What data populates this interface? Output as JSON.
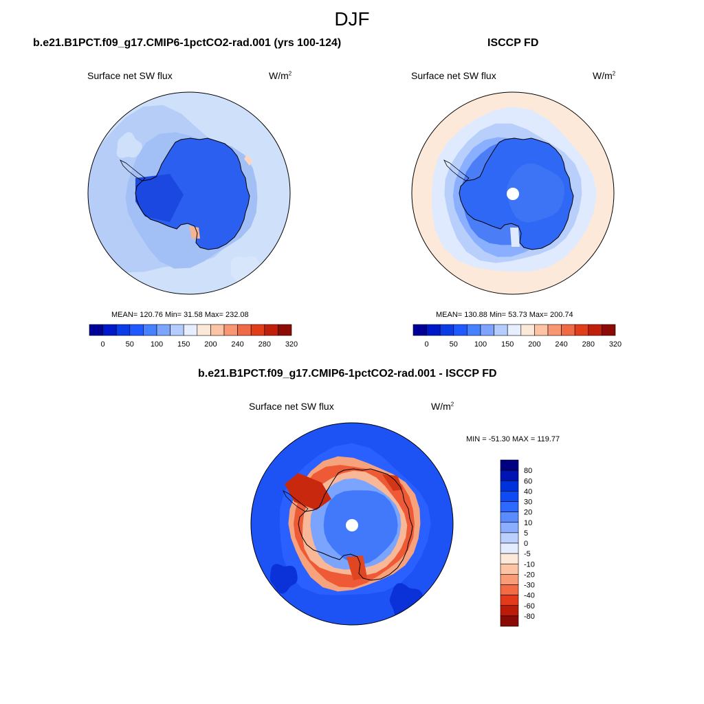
{
  "figure": {
    "title": "DJF",
    "colors": {
      "seq": [
        "#000096",
        "#0019c8",
        "#0c3ce6",
        "#1e5aff",
        "#4682ff",
        "#7da5ff",
        "#b4ccff",
        "#e6eeff",
        "#fde9da",
        "#fcc3a5",
        "#f89772",
        "#f06a45",
        "#e13e1a",
        "#c0200b",
        "#8c0c05"
      ],
      "diff": [
        "#000080",
        "#0014b4",
        "#0032dc",
        "#0f4bf5",
        "#2d68ff",
        "#5a8cff",
        "#8caeff",
        "#bcd0ff",
        "#e4edff",
        "#fde9da",
        "#fcc3a5",
        "#fa9b78",
        "#f36b45",
        "#e23a1a",
        "#bd1b0a",
        "#8a0a05"
      ]
    }
  },
  "chart_data": [
    {
      "type": "heatmap",
      "title": "b.e21.B1PCT.f09_g17.CMIP6-1pctCO2-rad.001 (yrs 100-124)",
      "variable": "Surface net SW flux",
      "units": "W/m",
      "units_sup": "2",
      "projection": "south polar stereographic",
      "stats": "MEAN= 120.76  Min=  31.58  Max= 232.08",
      "mean": 120.76,
      "min": 31.58,
      "max": 232.08,
      "colorbar_ticks": [
        "0",
        "50",
        "100",
        "150",
        "200",
        "240",
        "280",
        "320"
      ]
    },
    {
      "type": "heatmap",
      "title": "ISCCP FD",
      "variable": "Surface net SW flux",
      "units": "W/m",
      "units_sup": "2",
      "projection": "south polar stereographic",
      "stats": "MEAN= 130.88  Min=  53.73  Max= 200.74",
      "mean": 130.88,
      "min": 53.73,
      "max": 200.74,
      "colorbar_ticks": [
        "0",
        "50",
        "100",
        "150",
        "200",
        "240",
        "280",
        "320"
      ]
    },
    {
      "type": "heatmap",
      "title": "b.e21.B1PCT.f09_g17.CMIP6-1pctCO2-rad.001 - ISCCP FD",
      "variable": "Surface net SW flux",
      "units": "W/m",
      "units_sup": "2",
      "projection": "south polar stereographic",
      "stats": "MIN = -51.30 MAX = 119.77",
      "min": -51.3,
      "max": 119.77,
      "colorbar_levels": [
        "80",
        "60",
        "40",
        "30",
        "20",
        "10",
        "5",
        "0",
        "-5",
        "-10",
        "-20",
        "-30",
        "-40",
        "-60",
        "-80"
      ]
    }
  ]
}
